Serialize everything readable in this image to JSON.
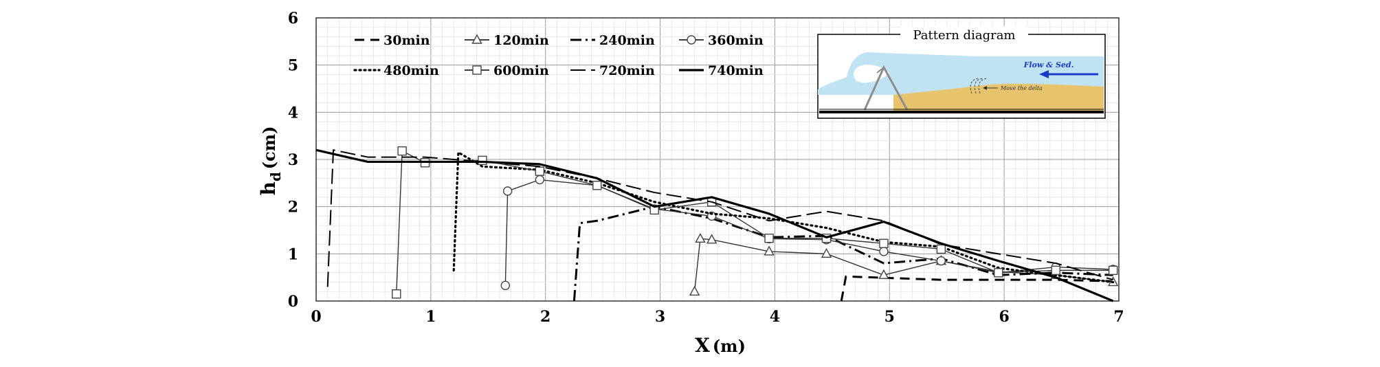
{
  "chart_data": {
    "type": "line",
    "xlabel_main": "X",
    "xlabel_unit": "(m)",
    "ylabel_main": "h",
    "ylabel_sub": "d",
    "ylabel_unit": "(cm)",
    "xlim": [
      0,
      7
    ],
    "ylim": [
      0,
      6
    ],
    "xticks": [
      "0",
      "1",
      "2",
      "3",
      "4",
      "5",
      "6",
      "7"
    ],
    "yticks": [
      "0",
      "1",
      "2",
      "3",
      "4",
      "5",
      "6"
    ],
    "grid": true,
    "legend_position": "top-left",
    "series": [
      {
        "name": "30min",
        "style": "dashed-thick",
        "marker": "none",
        "x": [
          4.58,
          4.62,
          5.45,
          6.45,
          6.95
        ],
        "y": [
          0.0,
          0.52,
          0.45,
          0.45,
          0.42
        ]
      },
      {
        "name": "120min",
        "style": "solid-thin",
        "marker": "triangle",
        "x": [
          3.3,
          3.35,
          3.45,
          3.95,
          4.45,
          4.95,
          5.45,
          5.95,
          6.45,
          6.95
        ],
        "y": [
          0.2,
          1.32,
          1.3,
          1.05,
          1.0,
          0.55,
          0.85,
          0.62,
          0.55,
          0.4
        ]
      },
      {
        "name": "240min",
        "style": "dashdot",
        "marker": "none",
        "x": [
          2.25,
          2.3,
          2.45,
          2.95,
          3.45,
          3.95,
          4.45,
          4.95,
          5.45,
          5.95,
          6.45,
          6.95
        ],
        "y": [
          0.0,
          1.65,
          1.7,
          2.0,
          1.75,
          1.35,
          1.38,
          0.8,
          0.9,
          0.55,
          0.6,
          0.55
        ]
      },
      {
        "name": "360min",
        "style": "solid-thin",
        "marker": "circle",
        "x": [
          1.65,
          1.67,
          1.95,
          2.45,
          2.95,
          3.45,
          3.95,
          4.45,
          4.95,
          5.45,
          5.95,
          6.45,
          6.95
        ],
        "y": [
          0.33,
          2.33,
          2.57,
          2.45,
          1.95,
          1.8,
          1.32,
          1.3,
          1.05,
          0.85,
          0.6,
          0.72,
          0.67
        ]
      },
      {
        "name": "480min",
        "style": "dotted",
        "marker": "none",
        "x": [
          1.2,
          1.24,
          1.45,
          1.95,
          2.45,
          2.95,
          3.45,
          3.95,
          4.45,
          4.95,
          5.45,
          5.95,
          6.45,
          6.95
        ],
        "y": [
          0.65,
          3.15,
          2.85,
          2.78,
          2.5,
          2.1,
          1.85,
          1.75,
          1.55,
          1.25,
          1.15,
          0.7,
          0.55,
          0.4
        ]
      },
      {
        "name": "600min",
        "style": "solid-thin",
        "marker": "square",
        "x": [
          0.7,
          0.75,
          0.95,
          1.45,
          1.95,
          2.45,
          2.95,
          3.45,
          3.95,
          4.45,
          4.95,
          5.45,
          5.95,
          6.45,
          6.95
        ],
        "y": [
          0.15,
          3.18,
          2.93,
          2.98,
          2.75,
          2.45,
          1.93,
          2.1,
          1.33,
          1.33,
          1.22,
          1.1,
          0.6,
          0.65,
          0.65
        ]
      },
      {
        "name": "720min",
        "style": "longdash",
        "marker": "none",
        "x": [
          0.1,
          0.15,
          0.45,
          0.95,
          1.45,
          1.95,
          2.45,
          2.95,
          3.45,
          3.95,
          4.45,
          4.95,
          5.45,
          5.95,
          6.45,
          6.95
        ],
        "y": [
          0.3,
          3.2,
          3.05,
          3.05,
          2.95,
          2.85,
          2.6,
          2.3,
          2.1,
          1.7,
          1.9,
          1.7,
          1.2,
          1.0,
          0.8,
          0.45
        ]
      },
      {
        "name": "740min",
        "style": "solid-thick",
        "marker": "none",
        "x": [
          0.0,
          0.45,
          0.95,
          1.45,
          1.95,
          2.45,
          2.95,
          3.45,
          3.95,
          4.45,
          4.95,
          5.45,
          5.95,
          6.45,
          6.95
        ],
        "y": [
          3.2,
          2.95,
          2.95,
          2.95,
          2.9,
          2.6,
          2.0,
          2.2,
          1.85,
          1.35,
          1.68,
          1.22,
          0.85,
          0.5,
          0.0
        ]
      }
    ]
  },
  "inset": {
    "title": "Pattern diagram",
    "flow_label": "Flow & Sed.",
    "delta_label": "Move the delta",
    "colors": {
      "water": "#bfe3f3",
      "sediment": "#e8c36e",
      "flow_arrow": "#1a3cc8",
      "structure": "#8c8c8c"
    }
  }
}
